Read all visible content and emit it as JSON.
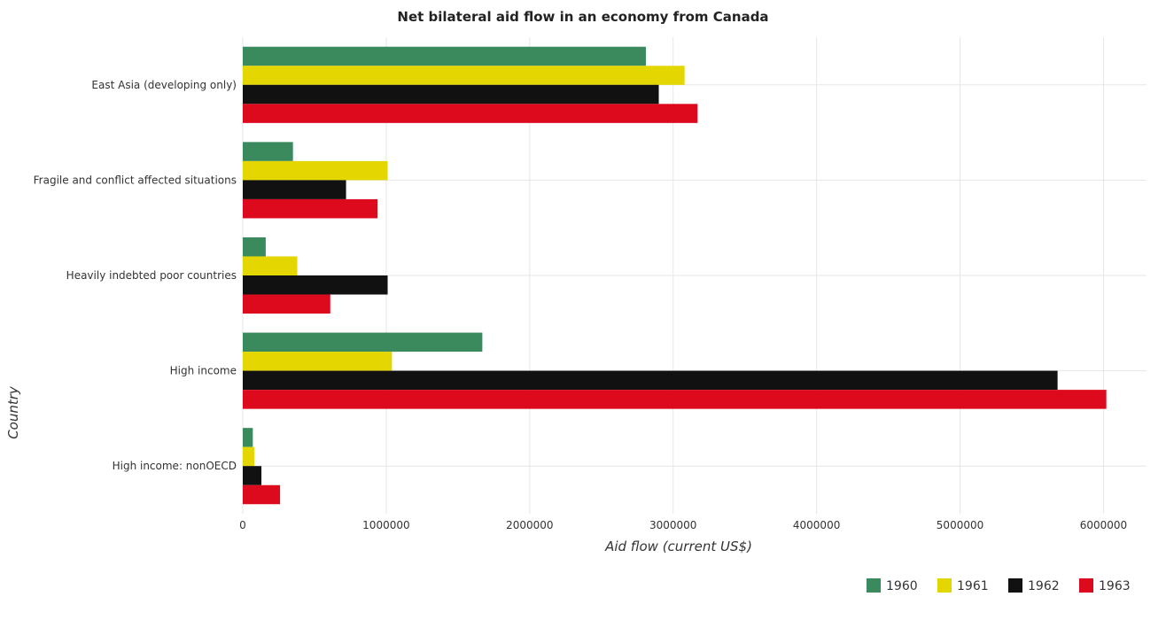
{
  "title": "Net bilateral aid flow in an economy from Canada",
  "chart_data": {
    "type": "bar",
    "orientation": "horizontal",
    "title": "Net bilateral aid flow in an economy from Canada",
    "xlabel": "Aid flow (current US$)",
    "ylabel": "Country",
    "categories": [
      "East Asia (developing only)",
      "Fragile and conflict affected situations",
      "Heavily indebted poor countries",
      "High income",
      "High income: nonOECD"
    ],
    "series": [
      {
        "name": "1960",
        "color": "#3a8a5e",
        "values": [
          2810000,
          350000,
          160000,
          1670000,
          70000
        ]
      },
      {
        "name": "1961",
        "color": "#e4d600",
        "values": [
          3080000,
          1010000,
          380000,
          1040000,
          80000
        ]
      },
      {
        "name": "1962",
        "color": "#111111",
        "values": [
          2900000,
          720000,
          1010000,
          5680000,
          130000
        ]
      },
      {
        "name": "1963",
        "color": "#dd0a1e",
        "values": [
          3170000,
          940000,
          610000,
          6020000,
          260000
        ]
      }
    ],
    "xlim": [
      0,
      6300000
    ],
    "xticks": [
      0,
      1000000,
      2000000,
      3000000,
      4000000,
      5000000,
      6000000
    ],
    "xtick_labels": [
      "0",
      "1000000",
      "2000000",
      "3000000",
      "4000000",
      "5000000",
      "6000000"
    ],
    "grid": true,
    "legend_position": "bottom-right"
  }
}
